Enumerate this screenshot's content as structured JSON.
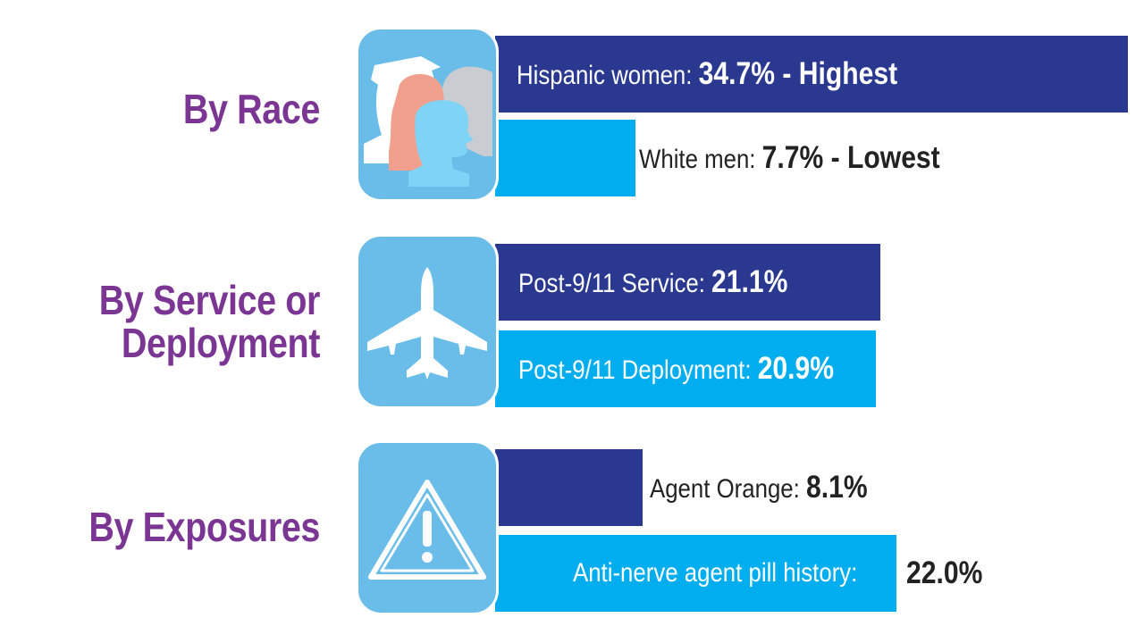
{
  "colors": {
    "primary_bar": "#2a388f",
    "secondary_bar": "#00adee",
    "icon_bg": "#6bbde9",
    "heading": "#7b3593"
  },
  "groups": [
    {
      "label": "By Race",
      "icon": "people-profiles-icon",
      "bars": [
        {
          "prefix": "Hispanic women: ",
          "value_text": "34.7% - Highest"
        },
        {
          "prefix": "White men: ",
          "value_text": "7.7% - Lowest"
        }
      ]
    },
    {
      "label_lines": [
        "By Service or",
        "Deployment"
      ],
      "icon": "airplane-icon",
      "bars": [
        {
          "prefix": "Post-9/11 Service: ",
          "value_text": "21.1%"
        },
        {
          "prefix": "Post-9/11 Deployment: ",
          "value_text": "20.9%"
        }
      ]
    },
    {
      "label": "By Exposures",
      "icon": "warning-triangle-icon",
      "bars": [
        {
          "prefix": "Agent Orange: ",
          "value_text": "8.1%"
        },
        {
          "prefix": "Anti-nerve agent pill history:",
          "value_text": "22.0%"
        }
      ]
    }
  ],
  "chart_data": {
    "type": "bar",
    "orientation": "horizontal",
    "unit": "%",
    "categories": [
      "Hispanic women",
      "White men",
      "Post-9/11 Service",
      "Post-9/11 Deployment",
      "Agent Orange",
      "Anti-nerve agent pill history"
    ],
    "values": [
      34.7,
      7.7,
      21.1,
      20.9,
      8.1,
      22.0
    ],
    "groups": [
      "By Race",
      "By Race",
      "By Service or Deployment",
      "By Service or Deployment",
      "By Exposures",
      "By Exposures"
    ],
    "annotations": [
      "Highest",
      "Lowest",
      "",
      "",
      "",
      ""
    ],
    "grid": false,
    "legend": "none"
  }
}
